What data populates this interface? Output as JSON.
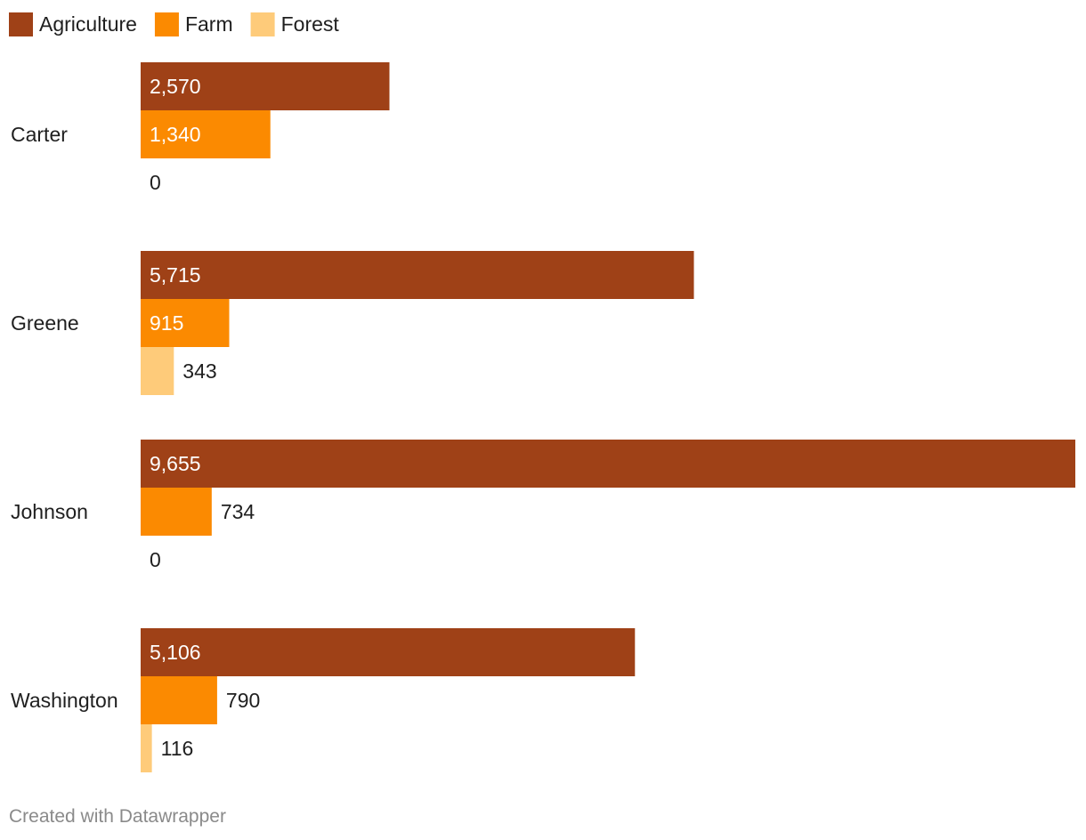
{
  "colors": {
    "Agriculture": "#9f4117",
    "Farm": "#fb8a01",
    "Forest": "#fecb7a"
  },
  "chart_data": {
    "type": "bar",
    "orientation": "horizontal",
    "categories": [
      "Carter",
      "Greene",
      "Johnson",
      "Washington"
    ],
    "series": [
      {
        "name": "Agriculture",
        "values": [
          2570,
          5715,
          9655,
          5106
        ],
        "labels": [
          "2,570",
          "5,715",
          "9,655",
          "5,106"
        ]
      },
      {
        "name": "Farm",
        "values": [
          1340,
          915,
          734,
          790
        ],
        "labels": [
          "1,340",
          "915",
          "734",
          "790"
        ]
      },
      {
        "name": "Forest",
        "values": [
          0,
          343,
          0,
          116
        ],
        "labels": [
          "0",
          "343",
          "0",
          "116"
        ]
      }
    ],
    "xlim": [
      0,
      9655
    ],
    "grid": false,
    "legend_position": "top-left"
  },
  "footer": {
    "credit": "Created with Datawrapper"
  }
}
